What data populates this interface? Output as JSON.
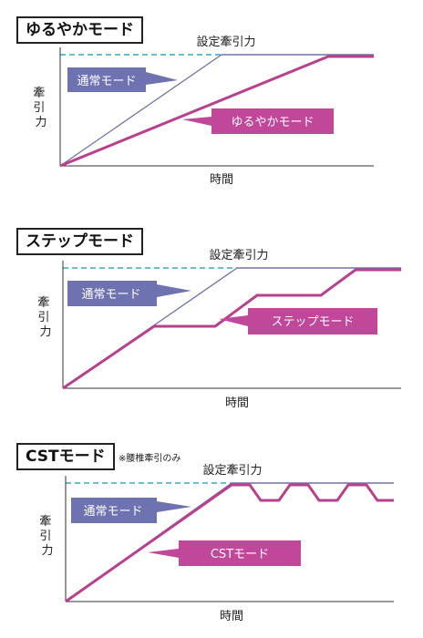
{
  "panels": [
    {
      "title": "ゆるやかモード",
      "note": "",
      "max_label": "設定牽引力",
      "ylabel": "牽引力",
      "xlabel": "時間",
      "normal_label": "通常モード",
      "mode_label": "ゆるやかモード"
    },
    {
      "title": "ステップモード",
      "note": "",
      "max_label": "設定牽引力",
      "ylabel": "牽引力",
      "xlabel": "時間",
      "normal_label": "通常モード",
      "mode_label": "ステップモード"
    },
    {
      "title": "CSTモード",
      "note": "※腰椎牽引のみ",
      "max_label": "設定牽引力",
      "ylabel": "牽引力",
      "xlabel": "時間",
      "normal_label": "通常モード",
      "mode_label": "CSTモード"
    }
  ],
  "colors": {
    "normal_line": "#6f74a8",
    "normal_box": "#6f72b0",
    "mode_line": "#b8408e",
    "mode_box": "#c0479a",
    "dashed": "#3aa6c8",
    "axis": "#333333"
  }
}
